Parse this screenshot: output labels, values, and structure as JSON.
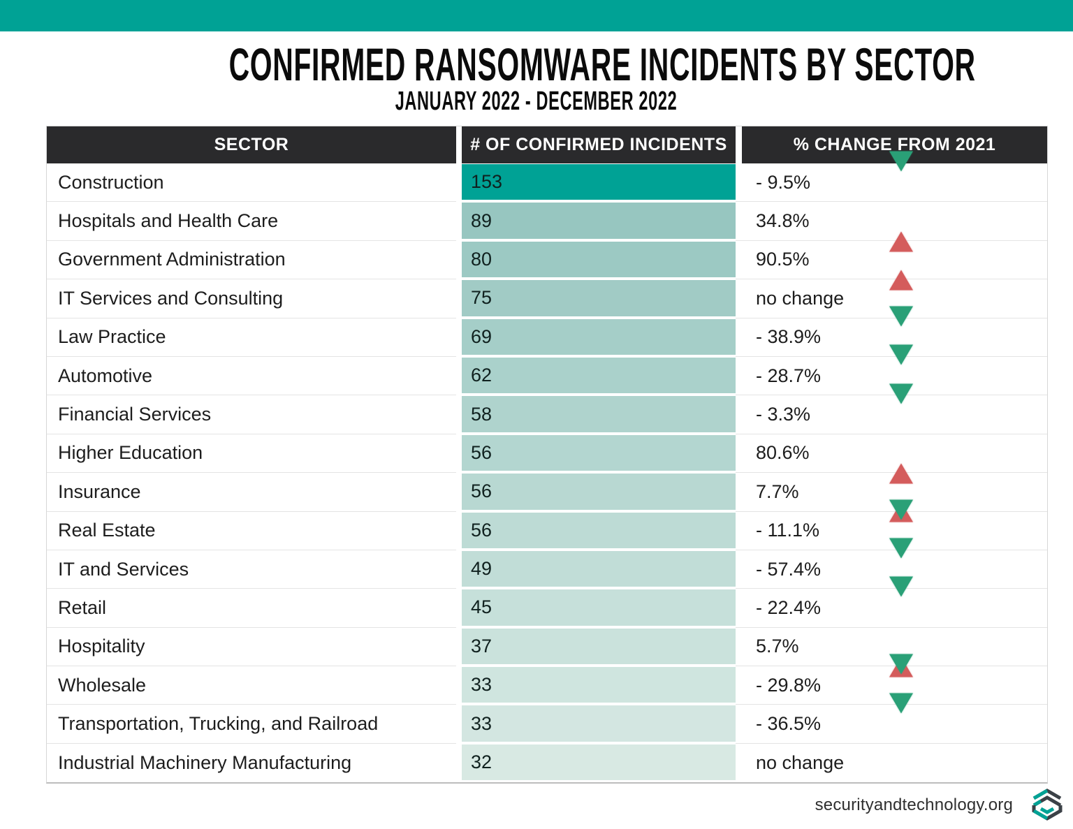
{
  "page": {
    "footer_site": "securityandtechnology.org"
  },
  "colors": {
    "accent_teal": "#00a295",
    "header_bg": "#2a2a2c",
    "up_red": "#d45c5c",
    "down_green": "#2aa077",
    "no_change_blue": "#4f81c6"
  },
  "chart_data": {
    "type": "table",
    "title": "CONFIRMED RANSOMWARE INCIDENTS BY SECTOR",
    "subtitle": "JANUARY 2022 - DECEMBER 2022",
    "columns": [
      "SECTOR",
      "# OF CONFIRMED INCIDENTS",
      "% CHANGE FROM 2021"
    ],
    "rows": [
      {
        "sector": "Construction",
        "incidents": 153,
        "change": "- 9.5%",
        "direction": "down",
        "cell_color": "#00a295"
      },
      {
        "sector": "Hospitals and Health Care",
        "incidents": 89,
        "change": "34.8%",
        "direction": "up",
        "cell_color": "#97c6c0"
      },
      {
        "sector": "Government Administration",
        "incidents": 80,
        "change": "90.5%",
        "direction": "up",
        "cell_color": "#9cc9c3"
      },
      {
        "sector": "IT Services and Consulting",
        "incidents": 75,
        "change": "no change",
        "direction": "none",
        "cell_color": "#a1cbc5"
      },
      {
        "sector": "Law Practice",
        "incidents": 69,
        "change": "- 38.9%",
        "direction": "down",
        "cell_color": "#a5cec8"
      },
      {
        "sector": "Automotive",
        "incidents": 62,
        "change": "- 28.7%",
        "direction": "down",
        "cell_color": "#aad1cb"
      },
      {
        "sector": "Financial Services",
        "incidents": 58,
        "change": "- 3.3%",
        "direction": "down",
        "cell_color": "#afd3cd"
      },
      {
        "sector": "Higher Education",
        "incidents": 56,
        "change": "80.6%",
        "direction": "up",
        "cell_color": "#b3d6d0"
      },
      {
        "sector": "Insurance",
        "incidents": 56,
        "change": "7.7%",
        "direction": "up",
        "cell_color": "#b8d8d2"
      },
      {
        "sector": "Real Estate",
        "incidents": 56,
        "change": "- 11.1%",
        "direction": "down",
        "cell_color": "#bddbd5"
      },
      {
        "sector": "IT and Services",
        "incidents": 49,
        "change": "- 57.4%",
        "direction": "down",
        "cell_color": "#c1ddd7"
      },
      {
        "sector": "Retail",
        "incidents": 45,
        "change": "- 22.4%",
        "direction": "down",
        "cell_color": "#c6e0da"
      },
      {
        "sector": "Hospitality",
        "incidents": 37,
        "change": "5.7%",
        "direction": "up",
        "cell_color": "#cae2dc"
      },
      {
        "sector": "Wholesale",
        "incidents": 33,
        "change": "- 29.8%",
        "direction": "down",
        "cell_color": "#cfe5df"
      },
      {
        "sector": "Transportation, Trucking, and Railroad",
        "incidents": 33,
        "change": "- 36.5%",
        "direction": "down",
        "cell_color": "#d3e6e1"
      },
      {
        "sector": "Industrial Machinery Manufacturing",
        "incidents": 32,
        "change": "no change",
        "direction": "none",
        "cell_color": "#d8e9e3"
      }
    ]
  }
}
